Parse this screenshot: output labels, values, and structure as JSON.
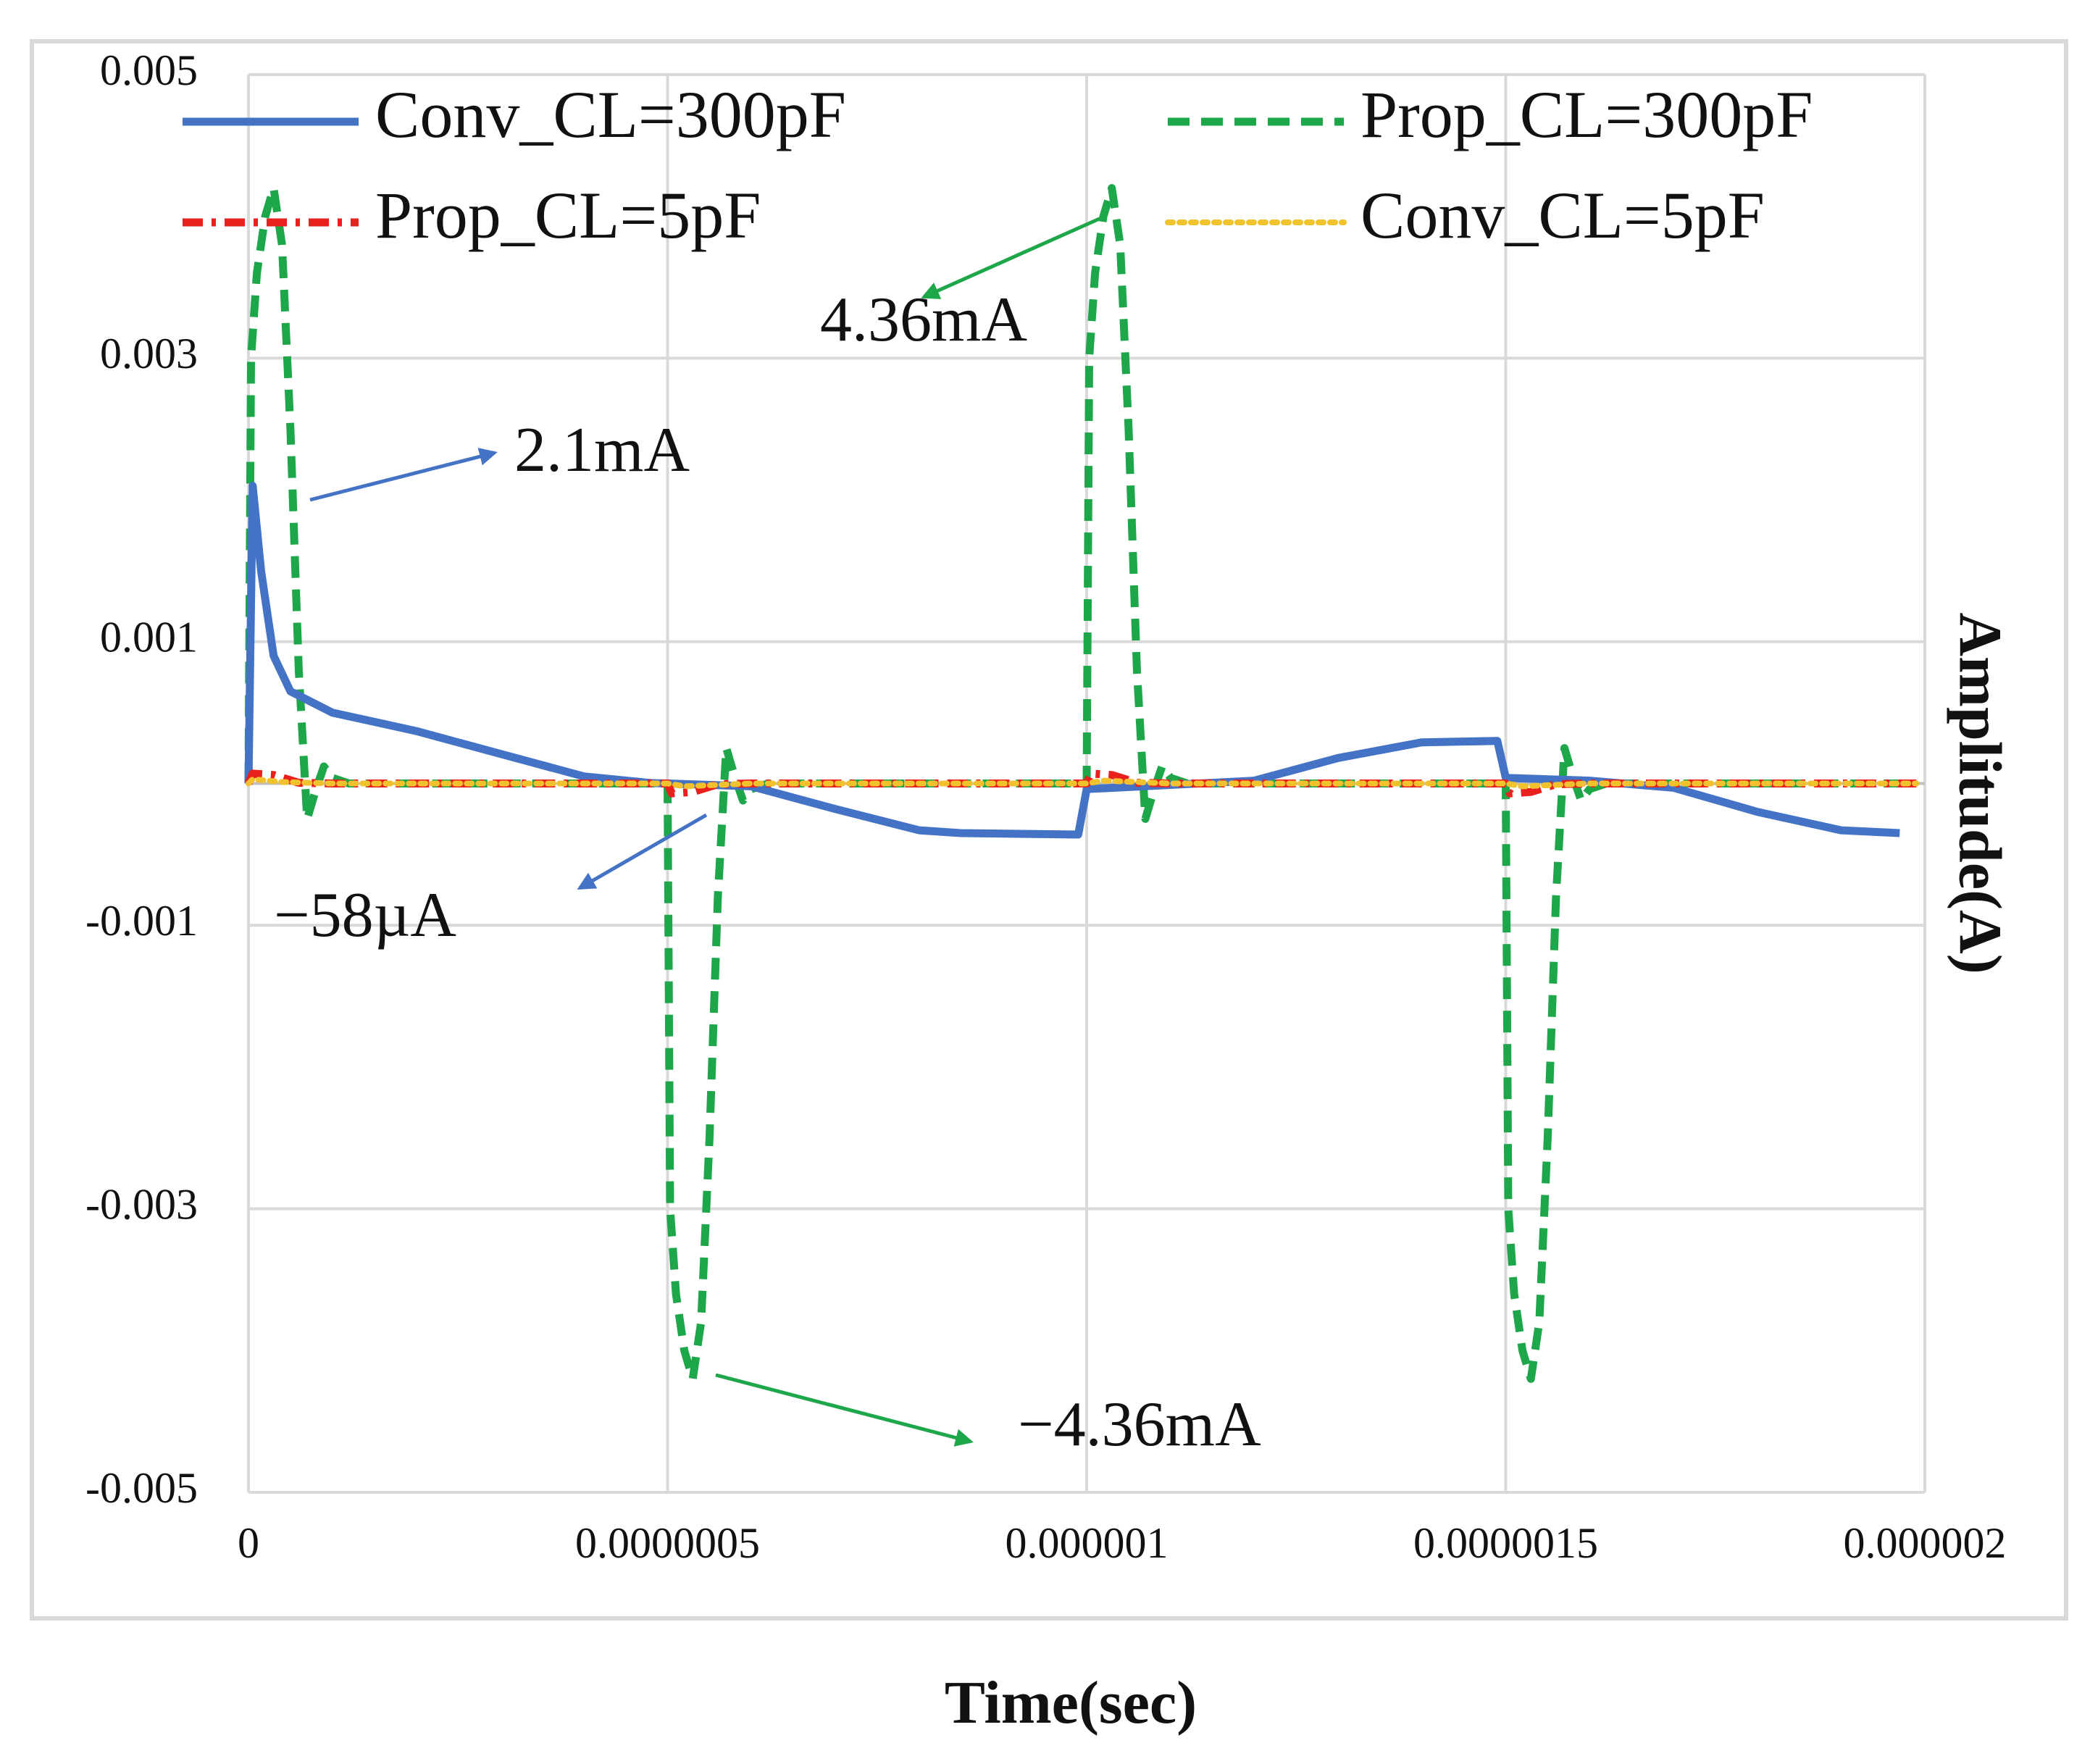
{
  "chart_data": {
    "type": "line",
    "title": "",
    "xlabel": "Time(sec)",
    "ylabel": "Amplitude(A)",
    "xlim": [
      0,
      2e-06
    ],
    "ylim": [
      -0.005,
      0.005
    ],
    "grid": true,
    "legend_position": "top",
    "x_ticks": [
      {
        "value": 0,
        "label": "0"
      },
      {
        "value": 5e-07,
        "label": "0.0000005"
      },
      {
        "value": 1e-06,
        "label": "0.000001"
      },
      {
        "value": 1.5e-06,
        "label": "0.0000015"
      },
      {
        "value": 2e-06,
        "label": "0.000002"
      }
    ],
    "y_ticks": [
      {
        "value": 0.005,
        "label": "0.005"
      },
      {
        "value": 0.003,
        "label": "0.003"
      },
      {
        "value": 0.001,
        "label": "0.001"
      },
      {
        "value": -0.001,
        "label": "-0.001"
      },
      {
        "value": -0.003,
        "label": "-0.003"
      },
      {
        "value": -0.005,
        "label": "-0.005"
      }
    ],
    "series": [
      {
        "name": "Conv_CL=300pF",
        "color": "#4472C4",
        "style": "solid",
        "points": [
          [
            0,
            0
          ],
          [
            5e-09,
            0.0021
          ],
          [
            1.5e-08,
            0.0015
          ],
          [
            3e-08,
            0.0009
          ],
          [
            5e-08,
            0.00065
          ],
          [
            1e-07,
            0.0005
          ],
          [
            2e-07,
            0.00037
          ],
          [
            3e-07,
            0.00021
          ],
          [
            4e-07,
            5e-05
          ],
          [
            4.8e-07,
            3e-06
          ],
          [
            5e-07,
            0
          ],
          [
            6e-07,
            -2e-05
          ],
          [
            7e-07,
            -0.00018
          ],
          [
            8e-07,
            -0.00033
          ],
          [
            8.5e-07,
            -0.00035
          ],
          [
            9.9e-07,
            -0.00036
          ],
          [
            1e-06,
            -4e-05
          ],
          [
            1.1e-06,
            -1e-05
          ],
          [
            1.2e-06,
            2e-05
          ],
          [
            1.3e-06,
            0.00018
          ],
          [
            1.4e-06,
            0.00029
          ],
          [
            1.49e-06,
            0.0003
          ],
          [
            1.5e-06,
            4e-05
          ],
          [
            1.6e-06,
            2e-05
          ],
          [
            1.7e-06,
            -3e-05
          ],
          [
            1.8e-06,
            -0.0002
          ],
          [
            1.9e-06,
            -0.00033
          ],
          [
            1.97e-06,
            -0.00035
          ]
        ]
      },
      {
        "name": "Prop_CL=300pF",
        "color": "#1EA64A",
        "style": "dashed",
        "points": [
          [
            0,
            0
          ],
          [
            3e-09,
            0.003
          ],
          [
            1e-08,
            0.0036
          ],
          [
            2e-08,
            0.004
          ],
          [
            3e-08,
            0.0042
          ],
          [
            4e-08,
            0.0038
          ],
          [
            5e-08,
            0.0025
          ],
          [
            6e-08,
            0.0008
          ],
          [
            7e-08,
            -0.00025
          ],
          [
            8e-08,
            -5e-05
          ],
          [
            9e-08,
            0.00012
          ],
          [
            1e-07,
            4e-05
          ],
          [
            1.2e-07,
            0
          ],
          [
            5e-07,
            0
          ],
          [
            5.03e-07,
            -0.003
          ],
          [
            5.1e-07,
            -0.0036
          ],
          [
            5.2e-07,
            -0.004
          ],
          [
            5.3e-07,
            -0.0042
          ],
          [
            5.4e-07,
            -0.0038
          ],
          [
            5.5e-07,
            -0.0025
          ],
          [
            5.6e-07,
            -0.0008
          ],
          [
            5.7e-07,
            0.00025
          ],
          [
            5.8e-07,
            5e-05
          ],
          [
            5.9e-07,
            -0.00012
          ],
          [
            6e-07,
            -4e-05
          ],
          [
            6.2e-07,
            0
          ],
          [
            1e-06,
            0
          ],
          [
            1.003e-06,
            0.003
          ],
          [
            1.01e-06,
            0.0036
          ],
          [
            1.02e-06,
            0.004
          ],
          [
            1.03e-06,
            0.0042
          ],
          [
            1.04e-06,
            0.0038
          ],
          [
            1.05e-06,
            0.0025
          ],
          [
            1.06e-06,
            0.0008
          ],
          [
            1.07e-06,
            -0.00025
          ],
          [
            1.08e-06,
            -5e-05
          ],
          [
            1.09e-06,
            0.00012
          ],
          [
            1.1e-06,
            4e-05
          ],
          [
            1.12e-06,
            0
          ],
          [
            1.5e-06,
            0
          ],
          [
            1.503e-06,
            -0.003
          ],
          [
            1.51e-06,
            -0.0036
          ],
          [
            1.52e-06,
            -0.004
          ],
          [
            1.53e-06,
            -0.0042
          ],
          [
            1.54e-06,
            -0.0038
          ],
          [
            1.55e-06,
            -0.0025
          ],
          [
            1.56e-06,
            -0.0008
          ],
          [
            1.57e-06,
            0.00025
          ],
          [
            1.58e-06,
            5e-05
          ],
          [
            1.59e-06,
            -0.00012
          ],
          [
            1.6e-06,
            -4e-05
          ],
          [
            1.62e-06,
            0
          ],
          [
            1.99e-06,
            0
          ]
        ]
      },
      {
        "name": "Prop_CL=5pF",
        "color": "#E8201E",
        "style": "dashdot",
        "points": [
          [
            0,
            0
          ],
          [
            5e-09,
            7e-05
          ],
          [
            3e-08,
            6e-05
          ],
          [
            6e-08,
            5e-06
          ],
          [
            1e-07,
            0
          ],
          [
            5e-07,
            0
          ],
          [
            5.05e-07,
            -7e-05
          ],
          [
            5.3e-07,
            -6e-05
          ],
          [
            5.6e-07,
            -5e-06
          ],
          [
            6e-07,
            0
          ],
          [
            1e-06,
            0
          ],
          [
            1.005e-06,
            7e-05
          ],
          [
            1.03e-06,
            6e-05
          ],
          [
            1.06e-06,
            5e-06
          ],
          [
            1.1e-06,
            0
          ],
          [
            1.5e-06,
            0
          ],
          [
            1.505e-06,
            -7e-05
          ],
          [
            1.53e-06,
            -6e-05
          ],
          [
            1.56e-06,
            -5e-06
          ],
          [
            1.6e-06,
            0
          ],
          [
            1.99e-06,
            0
          ]
        ]
      },
      {
        "name": "Conv_CL=5pF",
        "color": "#F2C12E",
        "style": "dotted",
        "points": [
          [
            0,
            0
          ],
          [
            5e-09,
            3e-05
          ],
          [
            4e-08,
            1e-05
          ],
          [
            1e-07,
            0
          ],
          [
            5e-07,
            0
          ],
          [
            5.2e-07,
            -2e-05
          ],
          [
            6e-07,
            0
          ],
          [
            1e-06,
            0
          ],
          [
            1.02e-06,
            2e-05
          ],
          [
            1.1e-06,
            0
          ],
          [
            1.5e-06,
            0
          ],
          [
            1.52e-06,
            -2e-05
          ],
          [
            1.6e-06,
            0
          ],
          [
            1.99e-06,
            0
          ]
        ]
      }
    ],
    "annotations": [
      {
        "text": "4.36mA",
        "color": "#1EA64A",
        "points_to": [
          1.055e-06,
          0.00415
        ]
      },
      {
        "text": "2.1mA",
        "color": "#4472C4",
        "points_to": [
          7e-08,
          0.0021
        ]
      },
      {
        "text": "−58µA",
        "color": "#4472C4",
        "points_to": [
          5.5e-07,
          -6e-05
        ]
      },
      {
        "text": "−4.36mA",
        "color": "#1EA64A",
        "points_to": [
          5.5e-07,
          -0.00415
        ]
      }
    ]
  }
}
